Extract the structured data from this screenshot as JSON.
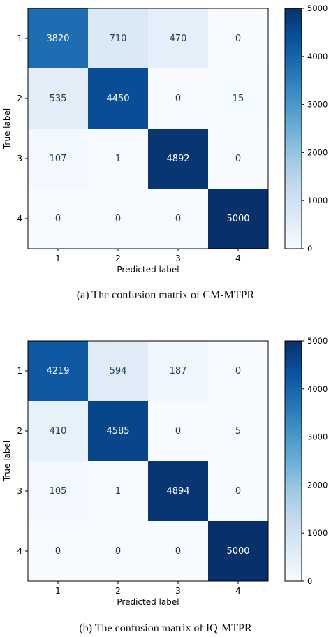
{
  "chart_data": [
    {
      "type": "heatmap",
      "caption": "(a) The confusion matrix of CM-MTPR",
      "xlabel": "Predicted label",
      "ylabel": "True label",
      "x_categories": [
        "1",
        "2",
        "3",
        "4"
      ],
      "y_categories": [
        "1",
        "2",
        "3",
        "4"
      ],
      "values": [
        [
          3820,
          710,
          470,
          0
        ],
        [
          535,
          4450,
          0,
          15
        ],
        [
          107,
          1,
          4892,
          0
        ],
        [
          0,
          0,
          0,
          5000
        ]
      ],
      "colorbar": {
        "min": 0,
        "max": 5000,
        "ticks": [
          0,
          1000,
          2000,
          3000,
          4000,
          5000
        ]
      },
      "colormap": "Blues"
    },
    {
      "type": "heatmap",
      "caption": "(b) The confusion matrix of IQ-MTPR",
      "xlabel": "Predicted label",
      "ylabel": "True label",
      "x_categories": [
        "1",
        "2",
        "3",
        "4"
      ],
      "y_categories": [
        "1",
        "2",
        "3",
        "4"
      ],
      "values": [
        [
          4219,
          594,
          187,
          0
        ],
        [
          410,
          4585,
          0,
          5
        ],
        [
          105,
          1,
          4894,
          0
        ],
        [
          0,
          0,
          0,
          5000
        ]
      ],
      "colorbar": {
        "min": 0,
        "max": 5000,
        "ticks": [
          0,
          1000,
          2000,
          3000,
          4000,
          5000
        ]
      },
      "colormap": "Blues"
    }
  ]
}
